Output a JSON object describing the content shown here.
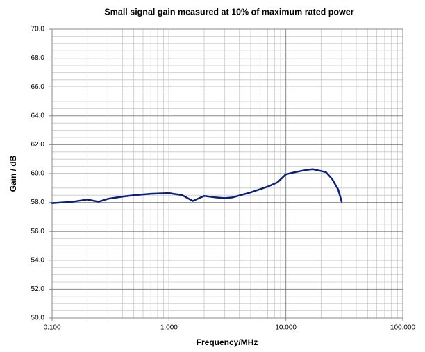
{
  "chart_data": {
    "type": "line",
    "title": "Small signal gain measured at 10% of maximum rated power",
    "xlabel": "Frequency/MHz",
    "ylabel": "Gain / dB",
    "x": [
      0.1,
      0.15,
      0.2,
      0.25,
      0.3,
      0.4,
      0.5,
      0.7,
      1.0,
      1.3,
      1.6,
      2.0,
      2.5,
      3.0,
      3.5,
      5,
      7,
      8.5,
      10,
      12,
      15,
      17,
      22,
      25,
      28,
      30
    ],
    "series": [
      {
        "name": "Gain",
        "color": "#0a1f7a",
        "values": [
          57.95,
          58.05,
          58.2,
          58.05,
          58.25,
          58.4,
          58.5,
          58.6,
          58.65,
          58.5,
          58.1,
          58.45,
          58.35,
          58.3,
          58.35,
          58.7,
          59.1,
          59.4,
          59.95,
          60.1,
          60.25,
          60.3,
          60.1,
          59.6,
          58.9,
          58.05
        ]
      }
    ],
    "xscale": "log",
    "xlim": [
      0.1,
      100
    ],
    "xticks": [
      {
        "value": 0.1,
        "label": "0.100"
      },
      {
        "value": 1,
        "label": "1.000"
      },
      {
        "value": 10,
        "label": "10.000"
      },
      {
        "value": 100,
        "label": "100.000"
      }
    ],
    "ylim": [
      50,
      70
    ],
    "yticks": [
      {
        "value": 50,
        "label": "50.0"
      },
      {
        "value": 52,
        "label": "52.0"
      },
      {
        "value": 54,
        "label": "54.0"
      },
      {
        "value": 56,
        "label": "56.0"
      },
      {
        "value": 58,
        "label": "58.0"
      },
      {
        "value": 60,
        "label": "60.0"
      },
      {
        "value": 62,
        "label": "62.0"
      },
      {
        "value": 64,
        "label": "64.0"
      },
      {
        "value": 66,
        "label": "66.0"
      },
      {
        "value": 68,
        "label": "68.0"
      },
      {
        "value": 70,
        "label": "70.0"
      }
    ],
    "grid": true,
    "minor_grid": true
  }
}
